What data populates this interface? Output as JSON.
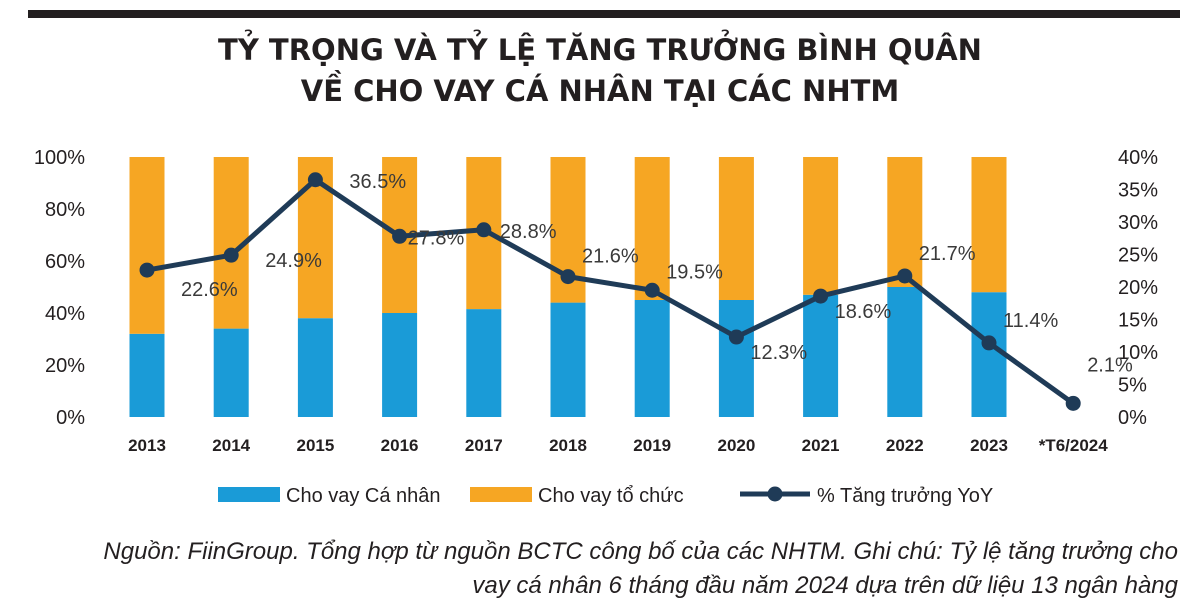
{
  "header": {
    "title_line1": "TỶ TRỌNG VÀ TỶ LỆ TĂNG TRƯỞNG BÌNH QUÂN",
    "title_line2": "VỀ CHO VAY CÁ NHÂN TẠI CÁC NHTM"
  },
  "footer": {
    "source_line1": "Nguồn: FiinGroup. Tổng hợp từ nguồn BCTC công bố của các NHTM. Ghi chú: Tỷ lệ tăng trưởng cho",
    "source_line2": "vay cá nhân 6 tháng đầu năm 2024 dựa trên dữ liệu 13 ngân hàng"
  },
  "colors": {
    "individual": "#1a9bd7",
    "organization": "#f6a623",
    "growth_line": "#1f3b57",
    "text": "#231f20"
  },
  "chart_data": {
    "type": "bar",
    "categories": [
      "2013",
      "2014",
      "2015",
      "2016",
      "2017",
      "2018",
      "2019",
      "2020",
      "2021",
      "2022",
      "2023",
      "*T6/2024"
    ],
    "left_axis": {
      "ticks": [
        "0%",
        "20%",
        "40%",
        "60%",
        "80%",
        "100%"
      ],
      "ylim": [
        0,
        100
      ]
    },
    "right_axis": {
      "ticks": [
        "0%",
        "5%",
        "10%",
        "15%",
        "20%",
        "25%",
        "30%",
        "35%",
        "40%"
      ],
      "ylim": [
        0,
        40
      ]
    },
    "legend_position": "bottom",
    "series": [
      {
        "name": "Cho vay Cá nhân",
        "type": "stacked-bar",
        "axis": "left",
        "values": [
          32,
          34,
          38,
          40,
          41.5,
          44,
          45,
          45,
          47,
          50,
          48,
          null
        ]
      },
      {
        "name": "Cho vay tổ chức",
        "type": "stacked-bar",
        "axis": "left",
        "values": [
          68,
          66,
          62,
          60,
          58.5,
          56,
          55,
          55,
          53,
          50,
          52,
          null
        ]
      },
      {
        "name": "% Tăng trưởng YoY",
        "type": "line",
        "axis": "right",
        "values": [
          22.6,
          24.9,
          36.5,
          27.8,
          28.8,
          21.6,
          19.5,
          12.3,
          18.6,
          21.7,
          11.4,
          2.1
        ],
        "labels": [
          "22.6%",
          "24.9%",
          "36.5%",
          "27.8%",
          "28.8%",
          "21.6%",
          "19.5%",
          "12.3%",
          "18.6%",
          "21.7%",
          "11.4%",
          "2.1%"
        ]
      }
    ]
  }
}
